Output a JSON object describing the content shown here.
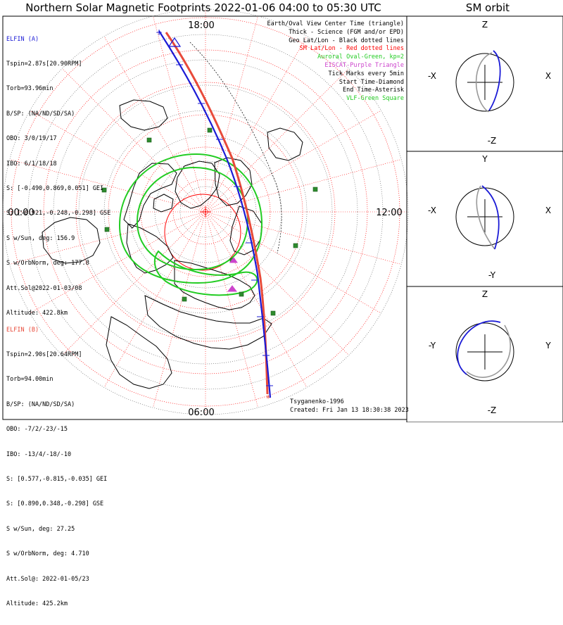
{
  "title": "Northern Solar Magnetic Footprints 2022-01-06 04:00 to 05:30 UTC",
  "orbit_title": "SM orbit",
  "polar_labels": {
    "top": "18:00",
    "right": "12:00",
    "bottom": "06:00",
    "left": "00:00"
  },
  "elfin_a": {
    "name": "ELFIN (A)",
    "color": "#1b1bd6",
    "lines": [
      "Tspin=2.87s[20.90RPM]",
      "Torb=93.96min",
      "B/SP: (NA/ND/SD/SA)",
      "OBO: 3/0/19/17",
      "IBO: 6/1/18/18",
      "S: [-0.490,0.869,0.051] GEI",
      "S: [-0.921,-0.248,-0.298] GSE",
      "S w/Sun, deg: 156.9",
      "S w/OrbNorm, deg: 177.8",
      "Att.Sol@2022-01-03/08",
      "Altitude: 422.8km"
    ]
  },
  "elfin_b": {
    "name": "ELFIN (B)",
    "color": "#e84a3a",
    "lines": [
      "Tspin=2.90s[20.64RPM]",
      "Torb=94.00min",
      "B/SP: (NA/ND/SD/SA)",
      "OBO: -7/2/-23/-15",
      "IBO: -13/4/-18/-10",
      "S: [0.577,-0.815,-0.035] GEI",
      "S: [0.890,0.348,-0.298] GSE",
      "S w/Sun, deg: 27.25",
      "S w/OrbNorm, deg: 4.710",
      "Att.Sol@: 2022-01-05/23",
      "Altitude: 425.2km"
    ]
  },
  "legend": [
    {
      "text": "Earth/Oval View Center Time (triangle)",
      "color": "#000000"
    },
    {
      "text": "Thick - Science (FGM and/or EPD)",
      "color": "#000000"
    },
    {
      "text": "Geo Lat/Lon - Black dotted lines",
      "color": "#000000"
    },
    {
      "text": "SM Lat/Lon - Red dotted lines",
      "color": "#ff0000"
    },
    {
      "text": "Auroral Oval-Green, kp=2",
      "color": "#22cc22"
    },
    {
      "text": "EISCAT-Purple Triangle",
      "color": "#cc44cc"
    },
    {
      "text": "Tick Marks every 5min",
      "color": "#000000"
    },
    {
      "text": "Start Time-Diamond",
      "color": "#000000"
    },
    {
      "text": "End Time-Asterisk",
      "color": "#000000"
    },
    {
      "text": "VLF-Green Square",
      "color": "#22cc22"
    }
  ],
  "credit": "Tsyganenko-1996",
  "created": "Created: Fri Jan 13 18:30:38 2023",
  "orbit_panels": [
    {
      "top": "Z",
      "bottom": "-Z",
      "left": "-X",
      "right": "X"
    },
    {
      "top": "Y",
      "bottom": "-Y",
      "left": "-X",
      "right": "X"
    },
    {
      "top": "Z",
      "bottom": "-Z",
      "left": "-Y",
      "right": "Y"
    }
  ],
  "colors": {
    "elfin_a": "#1b1bd6",
    "elfin_b": "#e84a3a",
    "oval": "#22cc22",
    "grid_sm": "#ff0000",
    "vlf": "#2e8b2e"
  },
  "chart_data": {
    "type": "polar",
    "title": "Northern Solar Magnetic Footprints 2022-01-06 04:00 to 05:30 UTC",
    "axis": "magnetic local time, colatitude from SM pole",
    "series": [
      {
        "name": "ELFIN (A)",
        "values": []
      },
      {
        "name": "ELFIN (B)",
        "values": []
      }
    ]
  }
}
